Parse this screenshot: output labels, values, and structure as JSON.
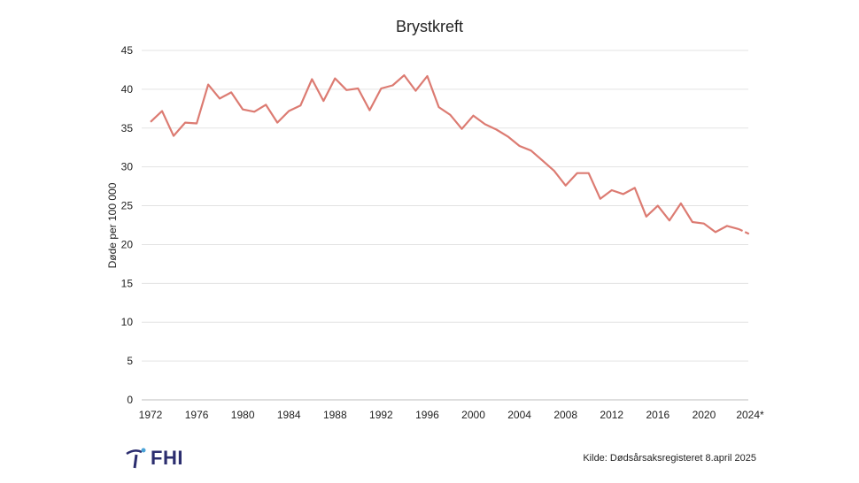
{
  "chart_data": {
    "type": "line",
    "title": "Brystkreft",
    "ylabel": "Døde per 100 000",
    "xlabel": "",
    "ylim": [
      0,
      45
    ],
    "yticks": [
      0,
      5,
      10,
      15,
      20,
      25,
      30,
      35,
      40,
      45
    ],
    "xlim": [
      1972,
      2024
    ],
    "xtick_labels": [
      "1972",
      "1976",
      "1980",
      "1984",
      "1988",
      "1992",
      "1996",
      "2000",
      "2004",
      "2008",
      "2012",
      "2016",
      "2020",
      "2024*"
    ],
    "grid": "horizontal",
    "line_color": "#dc7b72",
    "dashed_from_year": 2023,
    "series": [
      {
        "x": [
          1972,
          1973,
          1974,
          1975,
          1976,
          1977,
          1978,
          1979,
          1980,
          1981,
          1982,
          1983,
          1984,
          1985,
          1986,
          1987,
          1988,
          1989,
          1990,
          1991,
          1992,
          1993,
          1994,
          1995,
          1996,
          1997,
          1998,
          1999,
          2000,
          2001,
          2002,
          2003,
          2004,
          2005,
          2006,
          2007,
          2008,
          2009,
          2010,
          2011,
          2012,
          2013,
          2014,
          2015,
          2016,
          2017,
          2018,
          2019,
          2020,
          2021,
          2022,
          2023,
          2024
        ],
        "y": [
          35.8,
          37.2,
          34.0,
          35.7,
          35.6,
          40.6,
          38.8,
          39.6,
          37.4,
          37.1,
          38.0,
          35.7,
          37.2,
          37.9,
          41.3,
          38.5,
          41.4,
          39.9,
          40.1,
          37.3,
          40.1,
          40.5,
          41.8,
          39.8,
          41.7,
          37.7,
          36.7,
          34.9,
          36.6,
          35.5,
          34.8,
          33.9,
          32.7,
          32.1,
          30.8,
          29.5,
          27.6,
          29.2,
          29.2,
          25.9,
          27.0,
          26.5,
          27.3,
          23.6,
          25.0,
          23.1,
          25.3,
          22.9,
          22.7,
          21.6,
          22.4,
          22.0,
          21.3
        ]
      }
    ]
  },
  "logo": {
    "text": "FHI"
  },
  "source": "Kilde: Dødsårsaksregisteret 8.april 2025"
}
